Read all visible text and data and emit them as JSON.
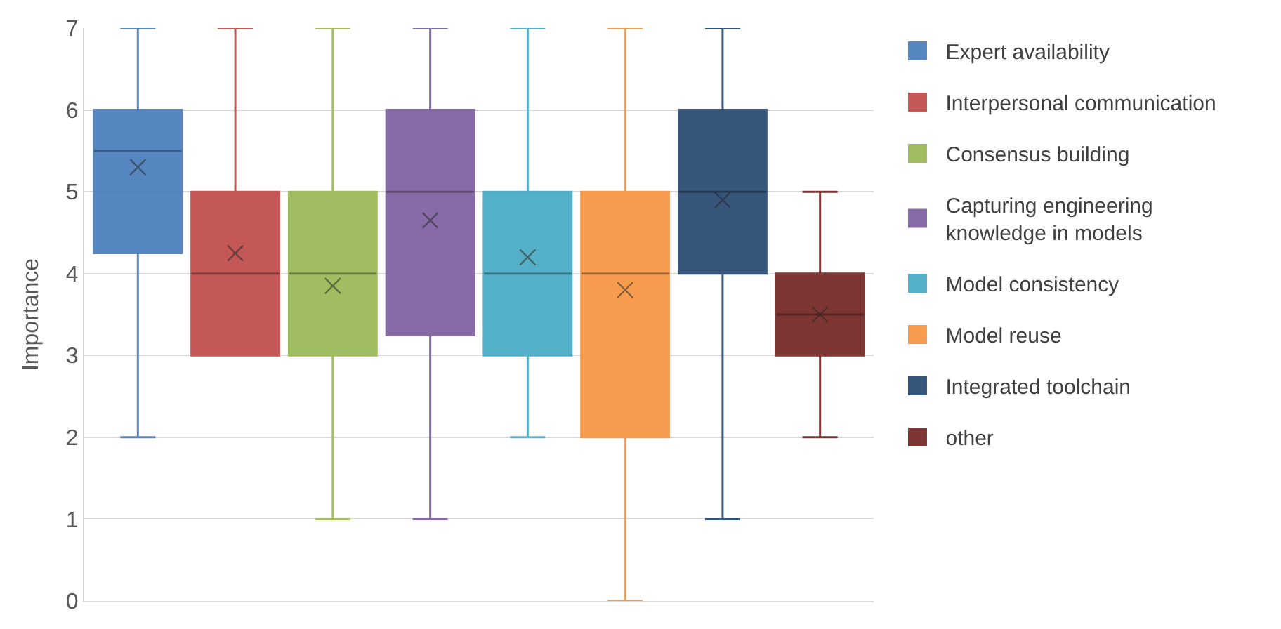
{
  "chart_data": {
    "type": "box",
    "ylabel": "Importance",
    "categories": [
      null
    ],
    "ylim": [
      0,
      7
    ],
    "yticks": [
      0,
      1,
      2,
      3,
      4,
      5,
      6,
      7
    ],
    "grid": "y",
    "legend": "right",
    "tick_labels": "y",
    "marker": "cross",
    "series": [
      {
        "name": "Expert availability",
        "color": "#4f81bd",
        "boxes": [
          {
            "low": 2,
            "q1": 4.25,
            "median": 5.5,
            "q3": 6,
            "high": 7,
            "mean": 5.3
          }
        ]
      },
      {
        "name": "Interpersonal communication",
        "color": "#c0504d",
        "boxes": [
          {
            "low": 3,
            "q1": 3,
            "median": 4,
            "q3": 5,
            "high": 7,
            "mean": 4.25
          }
        ]
      },
      {
        "name": "Consensus building",
        "color": "#9bbb59",
        "boxes": [
          {
            "low": 1,
            "q1": 3,
            "median": 4,
            "q3": 5,
            "high": 7,
            "mean": 3.85
          }
        ]
      },
      {
        "name": "Capturing engineering knowledge in models",
        "color": "#8064a2",
        "boxes": [
          {
            "low": 1,
            "q1": 3.25,
            "median": 5,
            "q3": 6,
            "high": 7,
            "mean": 4.65
          }
        ]
      },
      {
        "name": "Model consistency",
        "color": "#4bacc6",
        "boxes": [
          {
            "low": 2,
            "q1": 3,
            "median": 4,
            "q3": 5,
            "high": 7,
            "mean": 4.2
          }
        ]
      },
      {
        "name": "Model reuse",
        "color": "#f79646",
        "boxes": [
          {
            "low": 0,
            "q1": 2,
            "median": 4,
            "q3": 5,
            "high": 7,
            "mean": 3.8
          }
        ]
      },
      {
        "name": "Integrated toolchain",
        "color": "#2c4d75",
        "boxes": [
          {
            "low": 1,
            "q1": 4,
            "median": 5,
            "q3": 6,
            "high": 7,
            "mean": 4.9
          }
        ]
      },
      {
        "name": "other",
        "color": "#772c2a",
        "boxes": [
          {
            "low": 2,
            "q1": 3,
            "median": 3.5,
            "q3": 4,
            "high": 5,
            "mean": 3.5
          }
        ]
      }
    ]
  }
}
